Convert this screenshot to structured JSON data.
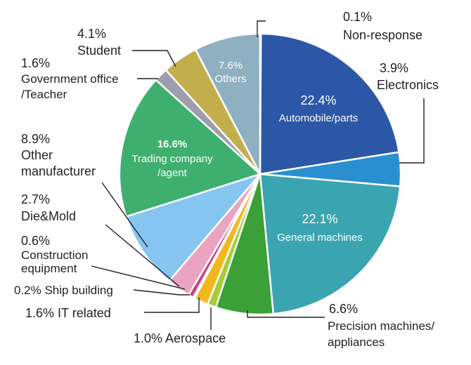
{
  "chart_data": {
    "type": "pie",
    "start": "12 o'clock, clockwise",
    "slices": [
      {
        "pct": "0.1%",
        "value": 0.1,
        "label": "Non-response",
        "color": "#e8e8e8"
      },
      {
        "pct": "22.4%",
        "value": 22.4,
        "label": "Automobile/parts",
        "color": "#2b57a6"
      },
      {
        "pct": "3.9%",
        "value": 3.9,
        "label": "Electronics",
        "color": "#2a8fd1"
      },
      {
        "pct": "22.1%",
        "value": 22.1,
        "label": "General machines",
        "color": "#3aa4b0"
      },
      {
        "pct": "6.6%",
        "value": 6.6,
        "label": "Precision machines/ appliances",
        "color": "#3aa037"
      },
      {
        "pct": "1.0%",
        "value": 1.0,
        "label": "Aerospace",
        "color": "#a6cd3a"
      },
      {
        "pct": "1.6%",
        "value": 1.6,
        "label": "IT related",
        "color": "#f0b81d"
      },
      {
        "pct": "0.2%",
        "value": 0.2,
        "label": "Ship building",
        "color": "#e05a3c"
      },
      {
        "pct": "0.6%",
        "value": 0.6,
        "label": "Construction equipment",
        "color": "#c9447a"
      },
      {
        "pct": "2.7%",
        "value": 2.7,
        "label": "Die&Mold",
        "color": "#eba3c2"
      },
      {
        "pct": "8.9%",
        "value": 8.9,
        "label": "Other manufacturer",
        "color": "#86c5ef"
      },
      {
        "pct": "16.6%",
        "value": 16.6,
        "label": "Trading company /agent",
        "color": "#3eaf6e"
      },
      {
        "pct": "1.6%",
        "value": 1.6,
        "label": "Government office /Teacher",
        "color": "#9c9fab"
      },
      {
        "pct": "4.1%",
        "value": 4.1,
        "label": "Student",
        "color": "#c3ae4e"
      },
      {
        "pct": "7.6%",
        "value": 7.6,
        "label": "Others",
        "color": "#8fb0c0"
      }
    ],
    "labels": {
      "non_response_pct": "0.1%",
      "non_response": "Non-response",
      "automobile_pct": "22.4%",
      "automobile": "Automobile/parts",
      "electronics_pct": "3.9%",
      "electronics": "Electronics",
      "general_pct": "22.1%",
      "general": "General machines",
      "precision_pct": "6.6%",
      "precision_1": "Precision machines/",
      "precision_2": "appliances",
      "aerospace": "1.0% Aerospace",
      "it": "1.6% IT related",
      "ship": "0.2% Ship building",
      "construction_pct": "0.6%",
      "construction_1": "Construction",
      "construction_2": "equipment",
      "diemold_pct": "2.7%",
      "diemold": "Die&Mold",
      "othermfr_pct": "8.9%",
      "othermfr_1": "Other",
      "othermfr_2": "manufacturer",
      "trading_pct": "16.6%",
      "trading_1": "Trading company",
      "trading_2": "/agent",
      "gov_pct": "1.6%",
      "gov_1": "Government office",
      "gov_2": "/Teacher",
      "student_pct": "4.1%",
      "student": "Student",
      "others_pct": "7.6%",
      "others": "Others"
    }
  }
}
